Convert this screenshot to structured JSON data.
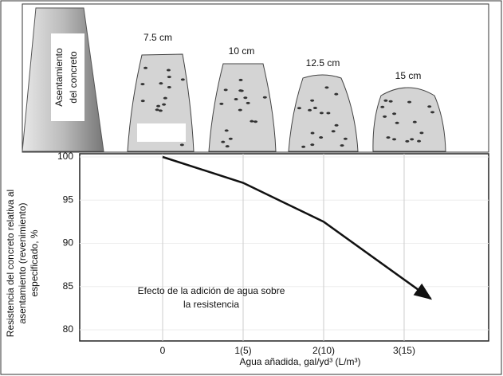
{
  "illustration": {
    "cone_label": [
      "Asentamiento",
      "del concreto"
    ],
    "slump_labels": [
      "7.5 cm",
      "10 cm",
      "12.5 cm",
      "15 cm"
    ]
  },
  "chart_data": {
    "type": "line",
    "y_label": [
      "Resistencia del concreto relativa al",
      "asentamiento (revenimiento)",
      "especificado, %"
    ],
    "x_label": "Agua añadida, gal/yd³ (L/m³)",
    "annotation": [
      "Efecto de la adición de agua sobre",
      "la resistencia"
    ],
    "series": [
      {
        "x": [
          0,
          1,
          2,
          3.33
        ],
        "values": [
          100,
          97,
          92.5,
          83.6
        ],
        "color": "#111111"
      }
    ],
    "xlim": [
      -1.03,
      4.05
    ],
    "xticks": [
      0,
      {
        "value": 1,
        "label": "1(5)"
      },
      {
        "value": 2,
        "label": "2(10)"
      },
      {
        "value": 3,
        "label": "3(15)"
      }
    ],
    "ylim": [
      80,
      100
    ],
    "yticks": [
      80,
      85,
      90,
      95,
      100
    ],
    "grid": true
  }
}
